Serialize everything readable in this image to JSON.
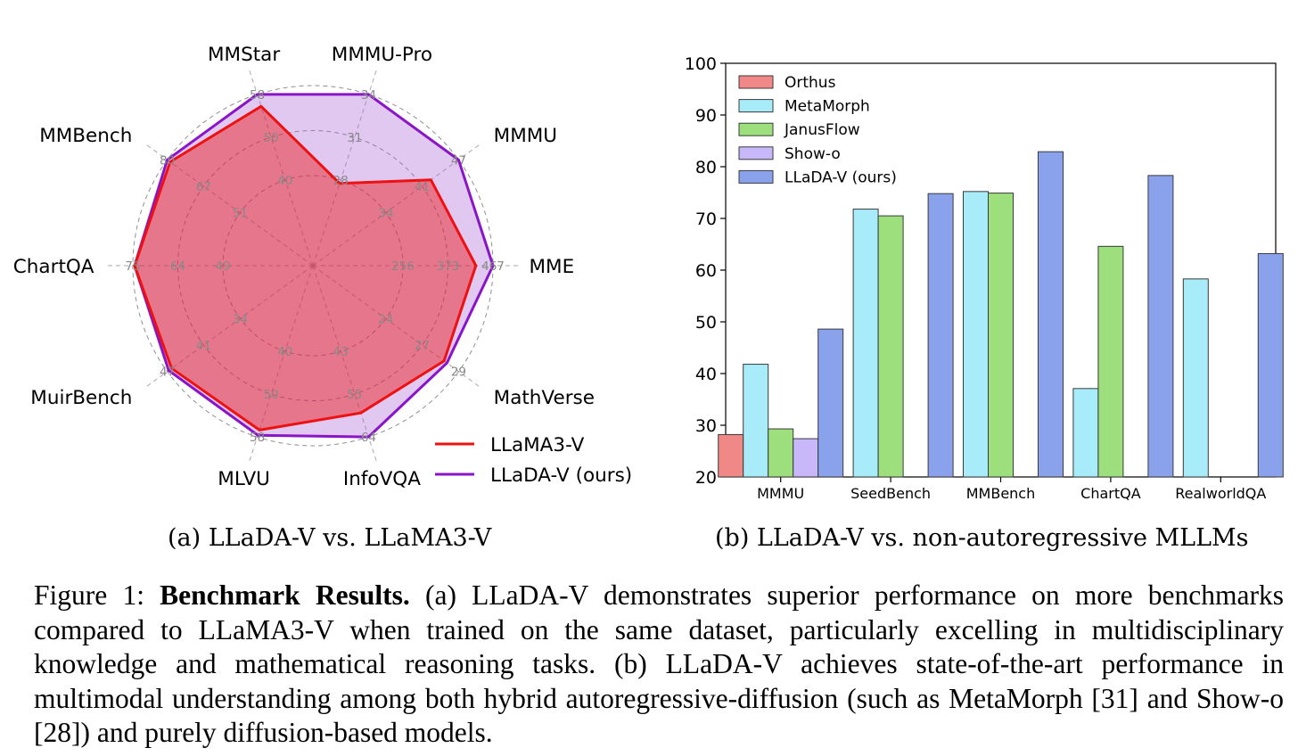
{
  "chart_data": [
    {
      "type": "radar",
      "axes": [
        {
          "name": "MME",
          "ticks": [
            "256",
            "373",
            "467"
          ]
        },
        {
          "name": "MMMU",
          "ticks": [
            "34",
            "41",
            "47"
          ]
        },
        {
          "name": "MMMU-Pro",
          "ticks": [
            "28",
            "31",
            "34"
          ]
        },
        {
          "name": "MMStar",
          "ticks": [
            "40",
            "50",
            "58"
          ]
        },
        {
          "name": "MMBench",
          "ticks": [
            "51",
            "67",
            "80"
          ]
        },
        {
          "name": "ChartQA",
          "ticks": [
            "49",
            "64",
            "75"
          ]
        },
        {
          "name": "MuirBench",
          "ticks": [
            "34",
            "41",
            "47"
          ]
        },
        {
          "name": "MLVU",
          "ticks": [
            "40",
            "50",
            "58"
          ]
        },
        {
          "name": "InfoVQA",
          "ticks": [
            "43",
            "55",
            "64"
          ]
        },
        {
          "name": "MathVerse",
          "ticks": [
            "24",
            "27",
            "29"
          ]
        }
      ],
      "series": [
        {
          "name": "LLaMA3-V",
          "color": "#ee1111",
          "fill": "#ee1111",
          "radius_fraction": [
            0.905,
            0.81,
            0.48,
            0.93,
            0.98,
            0.99,
            0.97,
            0.96,
            0.86,
            0.9
          ]
        },
        {
          "name": "LLaDA-V (ours)",
          "color": "#8a14c8",
          "fill": "#a860d8",
          "radius_fraction": [
            1.0,
            1.0,
            1.0,
            1.0,
            1.0,
            0.99,
            0.99,
            0.99,
            1.0,
            0.92
          ]
        }
      ],
      "legend": "bottom-right"
    },
    {
      "type": "bar",
      "categories": [
        "MMMU",
        "SeedBench",
        "MMBench",
        "ChartQA",
        "RealworldQA"
      ],
      "ylim": [
        20,
        100
      ],
      "yticks": [
        20,
        30,
        40,
        50,
        60,
        70,
        80,
        90,
        100
      ],
      "legend": "top-left",
      "series": [
        {
          "name": "Orthus",
          "color": "#f08888",
          "values": [
            28.2,
            null,
            null,
            null,
            null
          ]
        },
        {
          "name": "MetaMorph",
          "color": "#a8ecfa",
          "values": [
            41.8,
            71.8,
            75.2,
            37.1,
            58.3
          ]
        },
        {
          "name": "JanusFlow",
          "color": "#9cdf7c",
          "values": [
            29.3,
            70.5,
            74.9,
            64.6,
            null
          ]
        },
        {
          "name": "Show-o",
          "color": "#c8b8fa",
          "values": [
            27.4,
            null,
            null,
            null,
            null
          ]
        },
        {
          "name": "LLaDA-V (ours)",
          "color": "#8aa2ec",
          "values": [
            48.6,
            74.8,
            82.9,
            78.3,
            63.2
          ]
        }
      ]
    }
  ],
  "captions": {
    "a": "(a) LLaDA-V vs. LLaMA3-V",
    "b": "(b) LLaDA-V vs. non-autoregressive MLLMs",
    "figure_prefix": "Figure 1:",
    "figure_bold": "Benchmark Results.",
    "figure_text": "(a) LLaDA-V demonstrates superior performance on more benchmarks compared to LLaMA3-V when trained on the same dataset, particularly excelling in multidisciplinary knowledge and mathematical reasoning tasks. (b) LLaDA-V achieves state-of-the-art performance in multimodal understanding among both hybrid autoregressive-diffusion (such as MetaMorph [31] and Show-o [28]) and purely diffusion-based models."
  }
}
